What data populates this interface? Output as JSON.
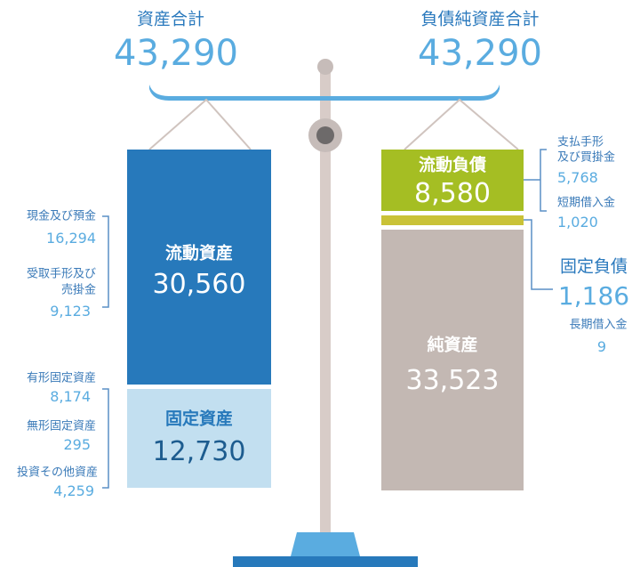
{
  "assets": {
    "title": "資産合計",
    "total": "43,290",
    "current": {
      "label": "流動資産",
      "value": "30,560",
      "items": [
        {
          "label_lines": [
            "現金及び預金"
          ],
          "value": "16,294"
        },
        {
          "label_lines": [
            "受取手形及び",
            "売掛金"
          ],
          "value": "9,123"
        }
      ]
    },
    "fixed": {
      "label": "固定資産",
      "value": "12,730",
      "items": [
        {
          "label_lines": [
            "有形固定資産"
          ],
          "value": "8,174"
        },
        {
          "label_lines": [
            "無形固定資産"
          ],
          "value": "295"
        },
        {
          "label_lines": [
            "投資その他資産"
          ],
          "value": "4,259"
        }
      ]
    }
  },
  "liabilities": {
    "title": "負債純資産合計",
    "total": "43,290",
    "current": {
      "label": "流動負債",
      "value": "8,580",
      "items": [
        {
          "label_lines": [
            "支払手形",
            "及び買掛金"
          ],
          "value": "5,768"
        },
        {
          "label_lines": [
            "短期借入金"
          ],
          "value": "1,020"
        }
      ]
    },
    "fixed": {
      "label": "固定負債",
      "value": "1,186",
      "items": [
        {
          "label_lines": [
            "長期借入金"
          ],
          "value": "9"
        }
      ]
    },
    "equity": {
      "label": "純資産",
      "value": "33,523"
    }
  }
}
